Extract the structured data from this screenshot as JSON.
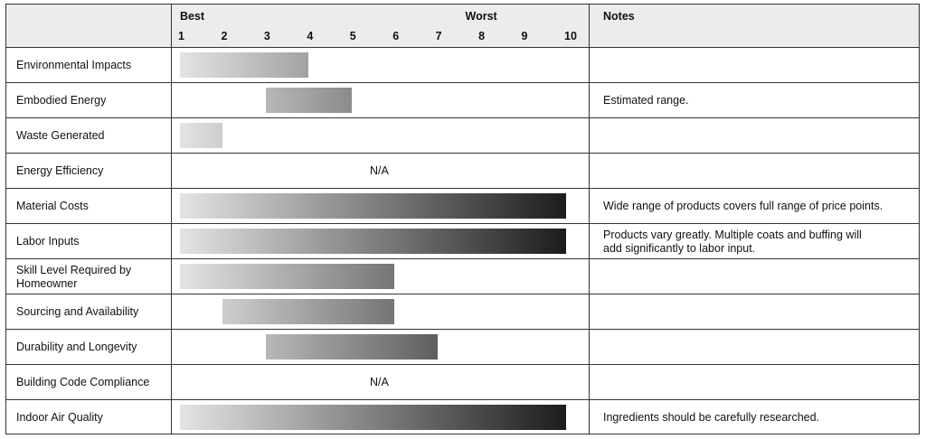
{
  "chart_data": {
    "type": "range-bar",
    "best_label": "Best",
    "worst_label": "Worst",
    "notes_label": "Notes",
    "xlim": [
      1,
      10
    ],
    "xticks": [
      1,
      2,
      3,
      4,
      5,
      6,
      7,
      8,
      9,
      10
    ],
    "categories": [
      "Environmental Impacts",
      "Embodied Energy",
      "Waste Generated",
      "Energy Efficiency",
      "Material Costs",
      "Labor Inputs",
      [
        "Skill Level Required by",
        "Homeowner"
      ],
      "Sourcing and Availability",
      "Durability and Longevity",
      "Building Code Compliance",
      "Indoor Air Quality"
    ],
    "start": [
      1,
      3,
      1,
      null,
      1,
      1,
      1,
      2,
      3,
      null,
      1
    ],
    "end": [
      4,
      5,
      2,
      null,
      10,
      10,
      6,
      6,
      7,
      null,
      10
    ],
    "value_labels": [
      null,
      null,
      null,
      "N/A",
      null,
      null,
      null,
      null,
      null,
      "N/A",
      null
    ],
    "notes": [
      null,
      "Estimated range.",
      null,
      null,
      "Wide range of products covers full range of price points.",
      [
        "Products vary greatly. Multiple coats and buffing will",
        "add significantly to labor input."
      ],
      null,
      null,
      null,
      null,
      "Ingredients should be carefully researched."
    ],
    "colors": [
      "#e4e4e4",
      "#1c1c1c"
    ]
  }
}
